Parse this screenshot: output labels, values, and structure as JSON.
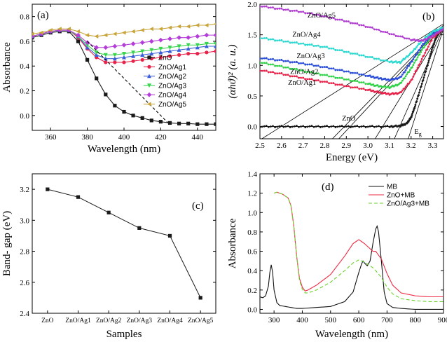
{
  "chart_data": [
    {
      "id": "a",
      "type": "line",
      "panel_label": "(a)",
      "xlabel": "Wavelength (nm)",
      "ylabel": "Absorbance",
      "xlim": [
        350,
        450
      ],
      "ylim": [
        -0.12,
        0.9
      ],
      "xticks": [
        360,
        380,
        400,
        420,
        440
      ],
      "yticks": [
        0.0,
        0.2,
        0.4,
        0.6,
        0.8
      ],
      "legend_position": "center-right",
      "series": [
        {
          "name": "ZnO",
          "color": "#1a1a1a",
          "marker": "square",
          "x": [
            350,
            355,
            360,
            365,
            370,
            375,
            380,
            385,
            390,
            395,
            400,
            405,
            410,
            415,
            420,
            425,
            430,
            435,
            440,
            445,
            450
          ],
          "y": [
            0.63,
            0.65,
            0.67,
            0.68,
            0.68,
            0.6,
            0.45,
            0.3,
            0.17,
            0.08,
            0.03,
            0.0,
            -0.02,
            -0.04,
            -0.05,
            -0.06,
            -0.065,
            -0.065,
            -0.07,
            -0.07,
            -0.07
          ]
        },
        {
          "name": "ZnO/Ag1",
          "color": "#e8234a",
          "marker": "circle",
          "x": [
            350,
            355,
            360,
            365,
            370,
            375,
            380,
            385,
            390,
            395,
            400,
            405,
            410,
            415,
            420,
            425,
            430,
            435,
            440,
            445,
            450
          ],
          "y": [
            0.64,
            0.66,
            0.68,
            0.69,
            0.69,
            0.63,
            0.54,
            0.47,
            0.43,
            0.43,
            0.43,
            0.44,
            0.45,
            0.46,
            0.47,
            0.48,
            0.49,
            0.5,
            0.5,
            0.51,
            0.52
          ]
        },
        {
          "name": "ZnO/Ag2",
          "color": "#3a5ed8",
          "marker": "triangle-up",
          "x": [
            350,
            355,
            360,
            365,
            370,
            375,
            380,
            385,
            390,
            395,
            400,
            405,
            410,
            415,
            420,
            425,
            430,
            435,
            440,
            445,
            450
          ],
          "y": [
            0.64,
            0.66,
            0.68,
            0.69,
            0.69,
            0.64,
            0.55,
            0.49,
            0.46,
            0.46,
            0.47,
            0.48,
            0.49,
            0.5,
            0.51,
            0.52,
            0.53,
            0.54,
            0.55,
            0.56,
            0.56
          ]
        },
        {
          "name": "ZnO/Ag3",
          "color": "#39d44e",
          "marker": "triangle-down",
          "x": [
            350,
            355,
            360,
            365,
            370,
            375,
            380,
            385,
            390,
            395,
            400,
            405,
            410,
            415,
            420,
            425,
            430,
            435,
            440,
            445,
            450
          ],
          "y": [
            0.64,
            0.66,
            0.68,
            0.69,
            0.69,
            0.64,
            0.57,
            0.51,
            0.49,
            0.49,
            0.5,
            0.51,
            0.52,
            0.53,
            0.54,
            0.55,
            0.56,
            0.57,
            0.57,
            0.58,
            0.58
          ]
        },
        {
          "name": "ZnO/Ag4",
          "color": "#b43cd8",
          "marker": "diamond",
          "x": [
            350,
            355,
            360,
            365,
            370,
            375,
            380,
            385,
            390,
            395,
            400,
            405,
            410,
            415,
            420,
            425,
            430,
            435,
            440,
            445,
            450
          ],
          "y": [
            0.64,
            0.66,
            0.68,
            0.69,
            0.69,
            0.65,
            0.59,
            0.55,
            0.55,
            0.56,
            0.57,
            0.58,
            0.59,
            0.6,
            0.61,
            0.62,
            0.63,
            0.63,
            0.64,
            0.65,
            0.65
          ]
        },
        {
          "name": "ZnO/Ag5",
          "color": "#c9a43a",
          "marker": "triangle-left",
          "x": [
            350,
            355,
            360,
            365,
            370,
            375,
            380,
            385,
            390,
            395,
            400,
            405,
            410,
            415,
            420,
            425,
            430,
            435,
            440,
            445,
            450
          ],
          "y": [
            0.66,
            0.67,
            0.69,
            0.7,
            0.7,
            0.68,
            0.65,
            0.64,
            0.65,
            0.66,
            0.67,
            0.68,
            0.69,
            0.7,
            0.7,
            0.71,
            0.72,
            0.72,
            0.73,
            0.73,
            0.74
          ]
        }
      ],
      "dashed_extrapolation": {
        "x": [
          380,
          424
        ],
        "y": [
          0.6,
          -0.06
        ]
      }
    },
    {
      "id": "b",
      "type": "line",
      "panel_label": "(b)",
      "xlabel": "Energy (eV)",
      "ylabel": "(αhϑ)² (a. u.)",
      "xlim": [
        2.5,
        3.35
      ],
      "ylim": [
        -0.2,
        2.0
      ],
      "xticks": [
        2.5,
        2.6,
        2.7,
        2.8,
        2.9,
        3.0,
        3.1,
        3.2,
        3.3
      ],
      "yticks": [
        0.0,
        0.5,
        1.0,
        1.5,
        2.0
      ],
      "bandgap_label": "Eg",
      "series": [
        {
          "name": "ZnO",
          "color": "#1a1a1a",
          "x": [
            2.5,
            2.6,
            2.7,
            2.8,
            2.9,
            3.0,
            3.1,
            3.15,
            3.18,
            3.2,
            3.22,
            3.25,
            3.28,
            3.3,
            3.32,
            3.35
          ],
          "y": [
            0.0,
            0.0,
            0.0,
            0.0,
            0.0,
            0.0,
            0.0,
            0.01,
            0.05,
            0.15,
            0.35,
            0.7,
            1.05,
            1.3,
            1.5,
            1.6
          ],
          "label_xy": [
            2.88,
            0.1
          ]
        },
        {
          "name": "ZnO/Ag1",
          "color": "#e8234a",
          "x": [
            2.5,
            2.6,
            2.7,
            2.8,
            2.9,
            3.0,
            3.05,
            3.1,
            3.15,
            3.2,
            3.25,
            3.3,
            3.35
          ],
          "y": [
            0.92,
            0.86,
            0.79,
            0.73,
            0.66,
            0.6,
            0.56,
            0.53,
            0.55,
            0.75,
            1.1,
            1.45,
            1.6
          ],
          "label_xy": [
            2.63,
            0.68
          ]
        },
        {
          "name": "ZnO/Ag2",
          "color": "#33d24a",
          "x": [
            2.5,
            2.6,
            2.7,
            2.8,
            2.9,
            3.0,
            3.05,
            3.1,
            3.15,
            3.2,
            3.25,
            3.3,
            3.35
          ],
          "y": [
            1.05,
            0.98,
            0.91,
            0.84,
            0.77,
            0.7,
            0.66,
            0.64,
            0.7,
            0.95,
            1.25,
            1.5,
            1.6
          ],
          "label_xy": [
            2.64,
            0.86
          ]
        },
        {
          "name": "ZnO/Ag3",
          "color": "#2a4ed8",
          "x": [
            2.5,
            2.6,
            2.7,
            2.8,
            2.9,
            3.0,
            3.05,
            3.1,
            3.15,
            3.2,
            3.25,
            3.3,
            3.35
          ],
          "y": [
            1.12,
            1.08,
            1.03,
            0.97,
            0.9,
            0.83,
            0.79,
            0.76,
            0.8,
            1.05,
            1.32,
            1.52,
            1.6
          ],
          "label_xy": [
            2.67,
            1.12
          ]
        },
        {
          "name": "ZnO/Ag4",
          "color": "#2ad8d0",
          "x": [
            2.5,
            2.6,
            2.7,
            2.8,
            2.9,
            3.0,
            3.1,
            3.15,
            3.2,
            3.25,
            3.3,
            3.35
          ],
          "y": [
            1.45,
            1.4,
            1.35,
            1.3,
            1.22,
            1.14,
            1.06,
            1.05,
            1.2,
            1.4,
            1.55,
            1.62
          ],
          "label_xy": [
            2.65,
            1.47
          ]
        },
        {
          "name": "ZnO/Ag5",
          "color": "#b03cd0",
          "x": [
            2.5,
            2.6,
            2.7,
            2.8,
            2.9,
            3.0,
            3.1,
            3.2,
            3.25,
            3.3,
            3.35
          ],
          "y": [
            1.97,
            1.92,
            1.87,
            1.8,
            1.72,
            1.63,
            1.52,
            1.42,
            1.4,
            1.48,
            1.6
          ],
          "label_xy": [
            2.72,
            1.78
          ]
        }
      ],
      "tangent_lines": [
        {
          "x": [
            2.5,
            3.35
          ],
          "y": [
            -0.22,
            1.68
          ]
        },
        {
          "x": [
            2.83,
            3.35
          ],
          "y": [
            -0.22,
            1.66
          ]
        },
        {
          "x": [
            2.86,
            3.35
          ],
          "y": [
            -0.22,
            1.64
          ]
        },
        {
          "x": [
            3.03,
            3.35
          ],
          "y": [
            -0.22,
            1.62
          ]
        },
        {
          "x": [
            3.12,
            3.35
          ],
          "y": [
            -0.22,
            1.62
          ]
        },
        {
          "x": [
            3.185,
            3.35
          ],
          "y": [
            -0.22,
            1.6
          ]
        }
      ]
    },
    {
      "id": "c",
      "type": "line",
      "panel_label": "(c)",
      "xlabel": "Samples",
      "ylabel": "Band- gap (eV)",
      "categories": [
        "ZnO",
        "ZnO/Ag1",
        "ZnO/Ag2",
        "ZnO/Ag3",
        "ZnO/Ag4",
        "ZnO/Ag5"
      ],
      "values": [
        3.2,
        3.15,
        3.05,
        2.95,
        2.9,
        2.5
      ],
      "ylim": [
        2.4,
        3.3
      ],
      "yticks": [
        2.4,
        2.6,
        2.8,
        3.0,
        3.2
      ],
      "color": "#1a1a1a"
    },
    {
      "id": "d",
      "type": "line",
      "panel_label": "(d)",
      "xlabel": "Wavelength (nm)",
      "ylabel": "Absorbance",
      "xlim": [
        250,
        900
      ],
      "ylim": [
        -0.04,
        1.4
      ],
      "xticks": [
        300,
        400,
        500,
        600,
        700,
        800,
        900
      ],
      "yticks": [
        0.0,
        0.2,
        0.4,
        0.6,
        0.8,
        1.0,
        1.2,
        1.4
      ],
      "legend_position": "top-right",
      "series": [
        {
          "name": "MB",
          "color": "#111111",
          "dash": "solid",
          "x": [
            250,
            260,
            270,
            280,
            285,
            290,
            295,
            300,
            310,
            320,
            340,
            360,
            380,
            400,
            450,
            500,
            550,
            580,
            600,
            610,
            615,
            620,
            630,
            640,
            650,
            660,
            665,
            670,
            680,
            690,
            700,
            720,
            750,
            800,
            850,
            900
          ],
          "y": [
            0.13,
            0.12,
            0.14,
            0.24,
            0.38,
            0.46,
            0.38,
            0.2,
            0.07,
            0.04,
            0.03,
            0.02,
            0.01,
            0.01,
            0.02,
            0.03,
            0.08,
            0.18,
            0.38,
            0.47,
            0.5,
            0.48,
            0.45,
            0.5,
            0.68,
            0.83,
            0.86,
            0.8,
            0.5,
            0.18,
            0.06,
            0.02,
            0.01,
            0.0,
            0.0,
            0.0
          ]
        },
        {
          "name": "ZnO+MB",
          "color": "#ee2a45",
          "dash": "solid",
          "x": [
            300,
            310,
            330,
            350,
            360,
            370,
            380,
            390,
            400,
            410,
            420,
            450,
            500,
            550,
            580,
            600,
            620,
            650,
            660,
            680,
            700,
            720,
            750,
            800,
            850,
            900
          ],
          "y": [
            1.2,
            1.21,
            1.19,
            1.15,
            1.07,
            0.86,
            0.55,
            0.32,
            0.23,
            0.19,
            0.2,
            0.25,
            0.36,
            0.55,
            0.68,
            0.72,
            0.68,
            0.6,
            0.6,
            0.52,
            0.37,
            0.25,
            0.17,
            0.14,
            0.13,
            0.13
          ]
        },
        {
          "name": "ZnO/Ag3+MB",
          "color": "#6ad22a",
          "dash": "dashed",
          "x": [
            300,
            310,
            330,
            350,
            360,
            370,
            380,
            390,
            400,
            410,
            420,
            450,
            500,
            550,
            580,
            600,
            620,
            650,
            660,
            680,
            700,
            720,
            750,
            800,
            850,
            900
          ],
          "y": [
            1.2,
            1.21,
            1.19,
            1.15,
            1.07,
            0.86,
            0.55,
            0.3,
            0.21,
            0.17,
            0.17,
            0.2,
            0.28,
            0.4,
            0.48,
            0.51,
            0.49,
            0.43,
            0.4,
            0.33,
            0.23,
            0.16,
            0.11,
            0.09,
            0.08,
            0.08
          ]
        }
      ]
    }
  ]
}
